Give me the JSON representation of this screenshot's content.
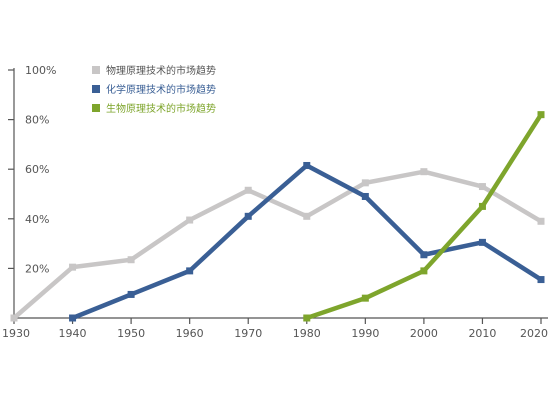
{
  "chart_data": {
    "type": "line",
    "x": [
      1930,
      1940,
      1950,
      1960,
      1970,
      1980,
      1990,
      2000,
      2010,
      2020
    ],
    "x_tick_labels": [
      "1930",
      "1940",
      "1950",
      "1960",
      "1970",
      "1980",
      "1990",
      "2000",
      "2010",
      "2020"
    ],
    "y_tick_labels": [
      "20%",
      "40%",
      "60%",
      "80%",
      "100%"
    ],
    "y_ticks": [
      20,
      40,
      60,
      80,
      100
    ],
    "xlim": [
      1930,
      2020
    ],
    "ylim": [
      0,
      100
    ],
    "grid": false,
    "legend_position": "top-left",
    "series": [
      {
        "name": "物理原理技术的市场趋势",
        "color": "#c8c6c6",
        "marker": "square",
        "x": [
          1930,
          1940,
          1950,
          1960,
          1970,
          1980,
          1990,
          2000,
          2010,
          2020
        ],
        "values": [
          0,
          20.5,
          23.5,
          39.5,
          51.5,
          41,
          54.5,
          59,
          53,
          39
        ]
      },
      {
        "name": "化学原理技术的市场趋势",
        "color": "#3a5f95",
        "marker": "square",
        "x": [
          1940,
          1950,
          1960,
          1970,
          1980,
          1990,
          2000,
          2010,
          2020
        ],
        "values": [
          0,
          9.5,
          19,
          41,
          61.5,
          49,
          25.5,
          30.5,
          15.5
        ]
      },
      {
        "name": "生物原理技术的市场趋势",
        "color": "#7ea52c",
        "marker": "square",
        "x": [
          1980,
          1990,
          2000,
          2010,
          2020
        ],
        "values": [
          0,
          8,
          19,
          45,
          82
        ]
      }
    ]
  }
}
